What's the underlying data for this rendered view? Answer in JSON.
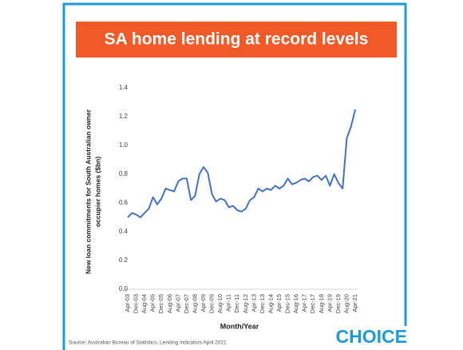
{
  "chart_data": {
    "type": "line",
    "title": "SA home lending at record levels",
    "y_label": [
      "New loan commitments for South Australian owner",
      "occupier homes ($bn)"
    ],
    "x_label": "Month/Year",
    "source": "Source: Australian Bureau of Statistics, Lending indicators April 2021",
    "brand": "CHOICE",
    "categories": [
      "Apr-03",
      null,
      "Dec-03",
      null,
      "Aug-04",
      null,
      "Apr-05",
      null,
      "Dec-05",
      null,
      "Aug-06",
      null,
      "Apr-07",
      null,
      "Dec-07",
      null,
      "Aug-08",
      null,
      "Apr-09",
      null,
      "Dec-09",
      null,
      "Aug-10",
      null,
      "Apr-11",
      null,
      "Dec-11",
      null,
      "Aug-12",
      null,
      "Apr-13",
      null,
      "Dec-13",
      null,
      "Aug-14",
      null,
      "Apr-15",
      null,
      "Dec-15",
      null,
      "Aug-16",
      null,
      "Apr-17",
      null,
      "Dec-17",
      null,
      "Aug-18",
      null,
      "Apr-19",
      null,
      "Dec-19",
      null,
      "Aug-20",
      null,
      "Apr-21"
    ],
    "values": [
      0.5,
      0.53,
      0.52,
      0.5,
      0.53,
      0.56,
      0.64,
      0.59,
      0.63,
      0.7,
      0.69,
      0.68,
      0.75,
      0.77,
      0.77,
      0.62,
      0.65,
      0.8,
      0.85,
      0.81,
      0.66,
      0.61,
      0.63,
      0.62,
      0.57,
      0.58,
      0.55,
      0.54,
      0.56,
      0.62,
      0.64,
      0.7,
      0.68,
      0.7,
      0.69,
      0.72,
      0.7,
      0.72,
      0.77,
      0.73,
      0.74,
      0.76,
      0.77,
      0.75,
      0.78,
      0.79,
      0.76,
      0.79,
      0.72,
      0.8,
      0.74,
      0.7,
      1.05,
      1.13,
      1.25
    ],
    "color": "#4472c4",
    "ylim": [
      0,
      1.4
    ],
    "yticks": [
      {
        "value": 0,
        "label": "0.0"
      },
      0.2,
      0.4,
      0.6,
      0.8,
      {
        "value": 1,
        "label": "1.0"
      },
      1.2,
      1.4
    ],
    "grid": false
  }
}
